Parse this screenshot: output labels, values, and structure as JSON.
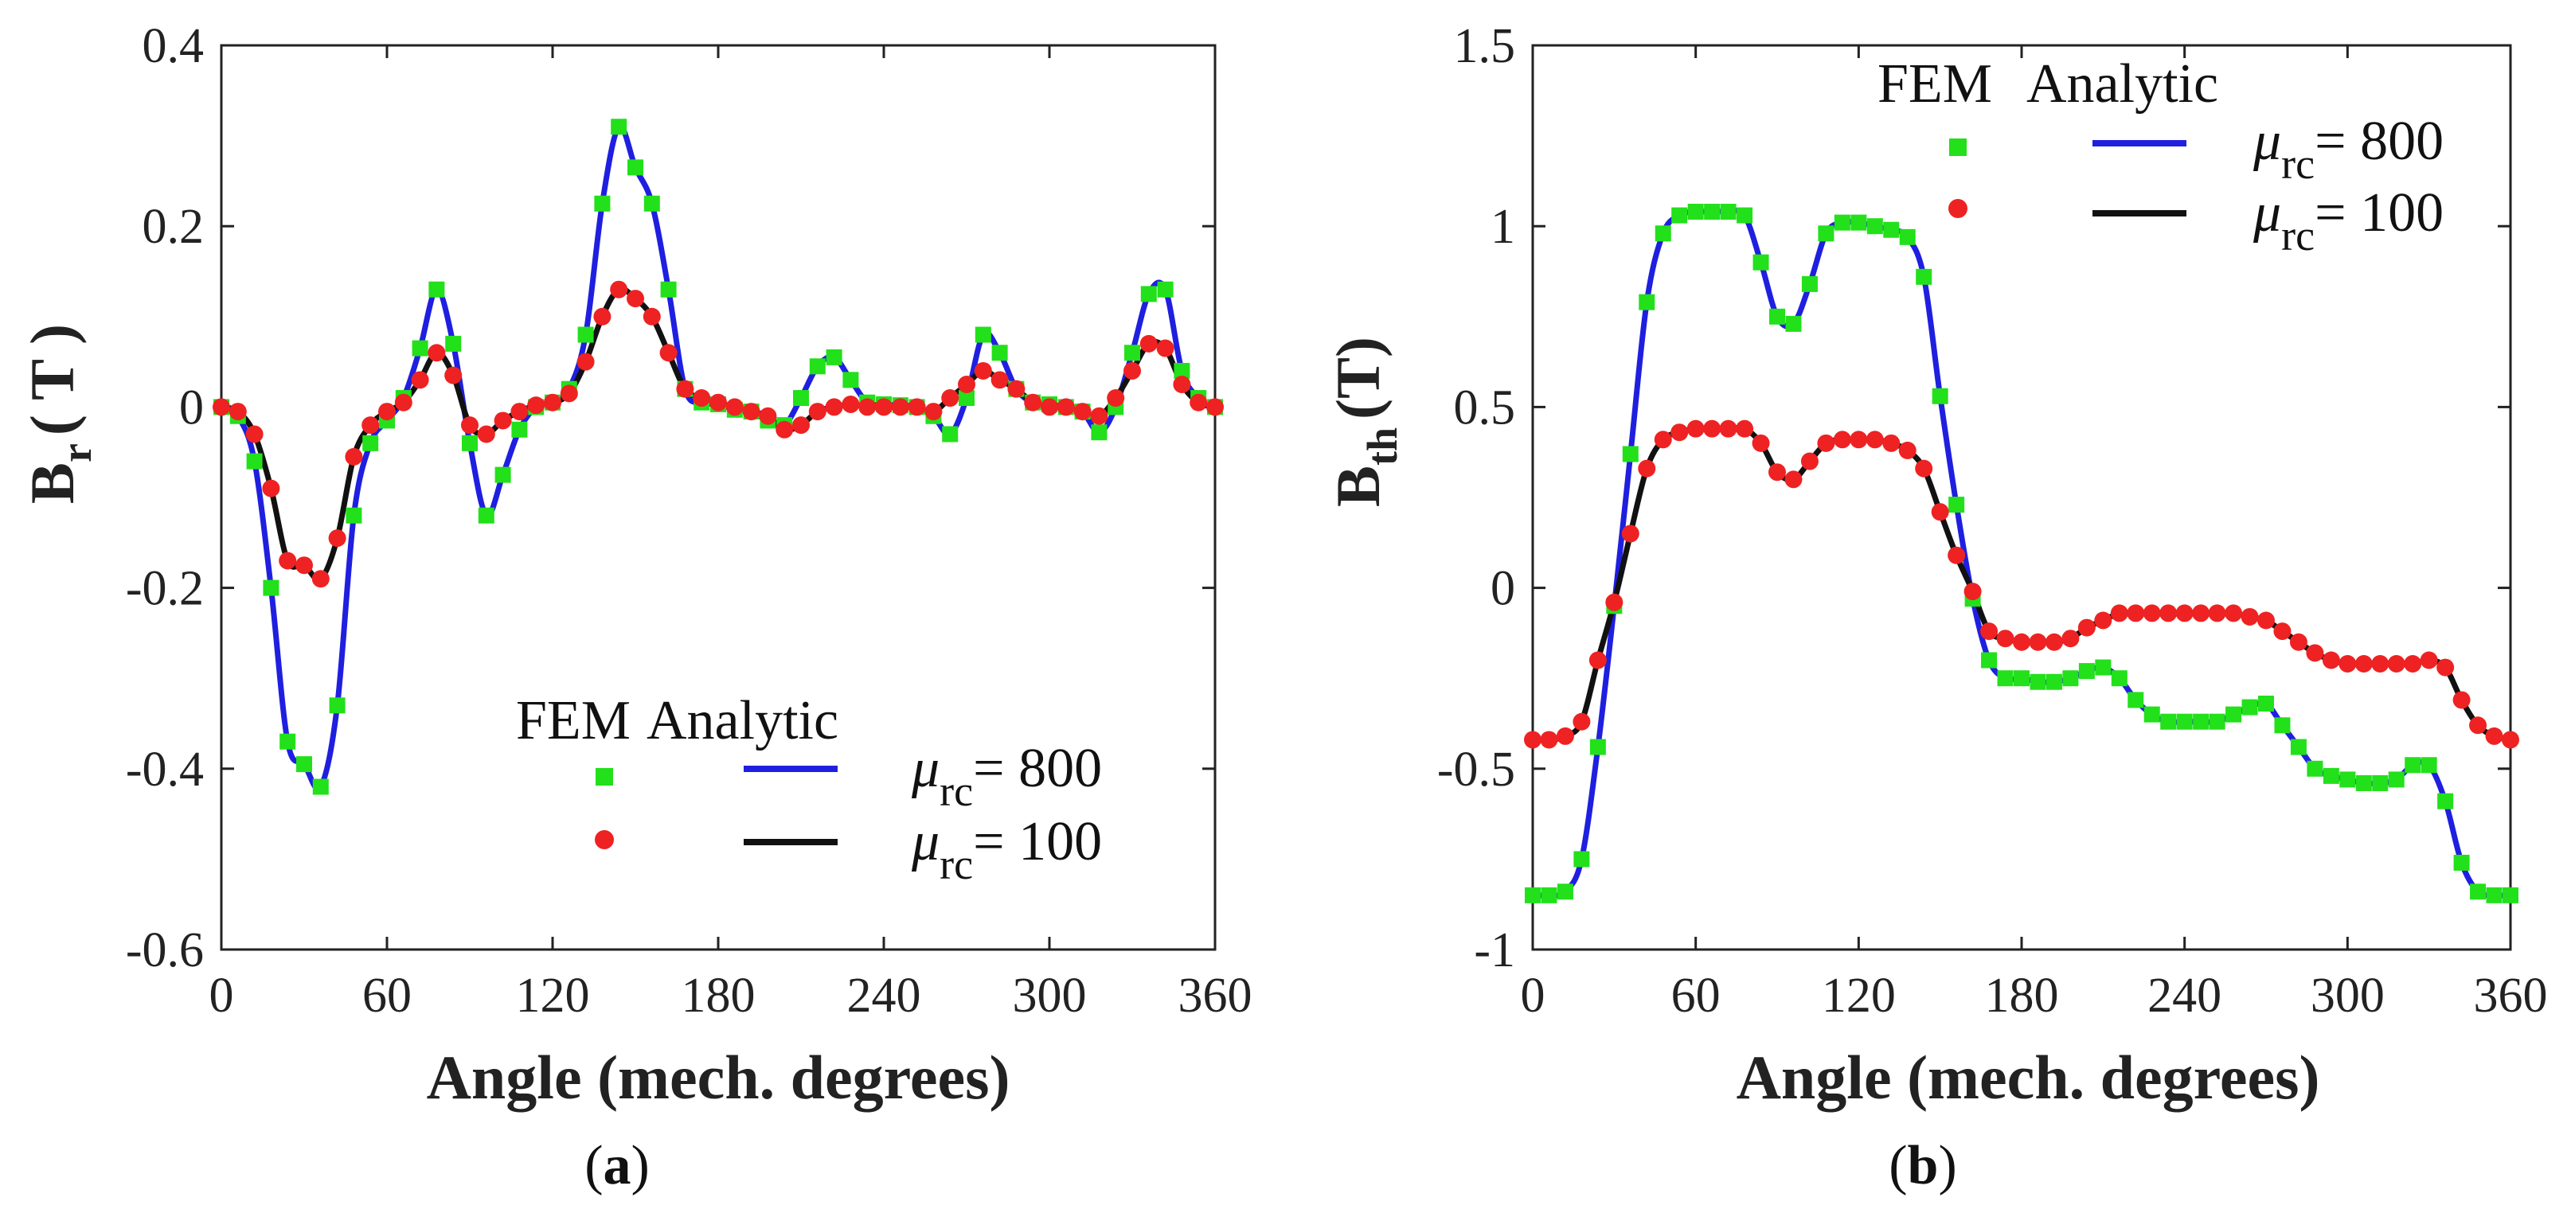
{
  "chart_data": [
    {
      "id": "a",
      "type": "line",
      "caption_letter": "a",
      "ylabel_main": "B",
      "ylabel_sub": "r",
      "ylabel_unit": "( T )",
      "xlabel": "Angle (mech. degrees)",
      "xlim": [
        0,
        360
      ],
      "ylim": [
        -0.6,
        0.4
      ],
      "xticks": [
        0,
        60,
        120,
        180,
        240,
        300,
        360
      ],
      "yticks": [
        -0.6,
        -0.4,
        -0.2,
        0,
        0.2,
        0.4
      ],
      "ytick_labels": [
        "-0.6",
        "-0.4",
        "-0.2",
        "0",
        "0.2",
        "0.4"
      ],
      "legend": {
        "header_fem": "FEM",
        "header_analytic": "Analytic",
        "placement": "lower-right"
      },
      "series": [
        {
          "name": "μrc = 800",
          "mu_label": "μ",
          "mu_sub": "rc",
          "mu_value": "= 800",
          "line_color": "#1f1fe0",
          "marker_color": "#22e01a",
          "marker": "square",
          "x": [
            0,
            6,
            12,
            18,
            24,
            30,
            36,
            42,
            48,
            54,
            60,
            66,
            72,
            78,
            84,
            90,
            96,
            102,
            108,
            114,
            120,
            126,
            132,
            138,
            144,
            150,
            156,
            162,
            168,
            174,
            180,
            186,
            192,
            198,
            204,
            210,
            216,
            222,
            228,
            234,
            240,
            246,
            252,
            258,
            264,
            270,
            276,
            282,
            288,
            294,
            300,
            306,
            312,
            318,
            324,
            330,
            336,
            342,
            348,
            354,
            360
          ],
          "y": [
            0,
            -0.01,
            -0.06,
            -0.2,
            -0.37,
            -0.395,
            -0.42,
            -0.33,
            -0.12,
            -0.04,
            -0.015,
            0.01,
            0.065,
            0.13,
            0.07,
            -0.04,
            -0.12,
            -0.075,
            -0.025,
            0.0,
            0.005,
            0.02,
            0.08,
            0.225,
            0.31,
            0.265,
            0.225,
            0.13,
            0.02,
            0.005,
            0.003,
            -0.003,
            -0.005,
            -0.015,
            -0.02,
            0.01,
            0.045,
            0.055,
            0.03,
            0.005,
            0.003,
            0.002,
            0.0,
            -0.01,
            -0.03,
            0.01,
            0.08,
            0.06,
            0.02,
            0.005,
            0.003,
            0.0,
            -0.005,
            -0.028,
            0.0,
            0.06,
            0.125,
            0.13,
            0.04,
            0.01,
            0.0
          ]
        },
        {
          "name": "μrc = 100",
          "mu_label": "μ",
          "mu_sub": "rc",
          "mu_value": "= 100",
          "line_color": "#111111",
          "marker_color": "#ee2222",
          "marker": "circle",
          "x": [
            0,
            6,
            12,
            18,
            24,
            30,
            36,
            42,
            48,
            54,
            60,
            66,
            72,
            78,
            84,
            90,
            96,
            102,
            108,
            114,
            120,
            126,
            132,
            138,
            144,
            150,
            156,
            162,
            168,
            174,
            180,
            186,
            192,
            198,
            204,
            210,
            216,
            222,
            228,
            234,
            240,
            246,
            252,
            258,
            264,
            270,
            276,
            282,
            288,
            294,
            300,
            306,
            312,
            318,
            324,
            330,
            336,
            342,
            348,
            354,
            360
          ],
          "y": [
            0,
            -0.005,
            -0.03,
            -0.09,
            -0.17,
            -0.175,
            -0.19,
            -0.145,
            -0.055,
            -0.02,
            -0.005,
            0.005,
            0.03,
            0.06,
            0.035,
            -0.02,
            -0.03,
            -0.015,
            -0.005,
            0.002,
            0.005,
            0.015,
            0.05,
            0.1,
            0.13,
            0.12,
            0.1,
            0.06,
            0.02,
            0.01,
            0.005,
            0.0,
            -0.005,
            -0.01,
            -0.025,
            -0.02,
            -0.005,
            0.0,
            0.003,
            0.0,
            0.0,
            0.0,
            0.0,
            -0.005,
            0.01,
            0.025,
            0.04,
            0.03,
            0.02,
            0.005,
            0.0,
            0.0,
            -0.005,
            -0.01,
            0.01,
            0.04,
            0.07,
            0.065,
            0.025,
            0.005,
            0.0
          ]
        }
      ]
    },
    {
      "id": "b",
      "type": "line",
      "caption_letter": "b",
      "ylabel_main": "B",
      "ylabel_sub": "th",
      "ylabel_unit": "(T)",
      "xlabel": "Angle (mech. degrees)",
      "xlim": [
        0,
        360
      ],
      "ylim": [
        -1,
        1.5
      ],
      "xticks": [
        0,
        60,
        120,
        180,
        240,
        300,
        360
      ],
      "yticks": [
        -1,
        -0.5,
        0,
        0.5,
        1,
        1.5
      ],
      "ytick_labels": [
        "-1",
        "-0.5",
        "0",
        "0.5",
        "1",
        "1.5"
      ],
      "legend": {
        "header_fem": "FEM",
        "header_analytic": "Analytic",
        "placement": "top-right"
      },
      "series": [
        {
          "name": "μrc = 800",
          "mu_label": "μ",
          "mu_sub": "rc",
          "mu_value": "= 800",
          "line_color": "#1f1fe0",
          "marker_color": "#22e01a",
          "marker": "square",
          "x": [
            0,
            6,
            12,
            18,
            24,
            30,
            36,
            42,
            48,
            54,
            60,
            66,
            72,
            78,
            84,
            90,
            96,
            102,
            108,
            114,
            120,
            126,
            132,
            138,
            144,
            150,
            156,
            162,
            168,
            174,
            180,
            186,
            192,
            198,
            204,
            210,
            216,
            222,
            228,
            234,
            240,
            246,
            252,
            258,
            264,
            270,
            276,
            282,
            288,
            294,
            300,
            306,
            312,
            318,
            324,
            330,
            336,
            342,
            348,
            354,
            360
          ],
          "y": [
            -0.85,
            -0.85,
            -0.84,
            -0.75,
            -0.44,
            -0.05,
            0.37,
            0.79,
            0.98,
            1.03,
            1.04,
            1.04,
            1.04,
            1.03,
            0.9,
            0.75,
            0.73,
            0.84,
            0.98,
            1.01,
            1.01,
            1.0,
            0.99,
            0.97,
            0.86,
            0.53,
            0.23,
            -0.03,
            -0.2,
            -0.25,
            -0.25,
            -0.26,
            -0.26,
            -0.25,
            -0.23,
            -0.22,
            -0.25,
            -0.31,
            -0.35,
            -0.37,
            -0.37,
            -0.37,
            -0.37,
            -0.35,
            -0.33,
            -0.32,
            -0.38,
            -0.44,
            -0.5,
            -0.52,
            -0.53,
            -0.54,
            -0.54,
            -0.53,
            -0.49,
            -0.49,
            -0.59,
            -0.76,
            -0.84,
            -0.85,
            -0.85
          ]
        },
        {
          "name": "μrc = 100",
          "mu_label": "μ",
          "mu_sub": "rc",
          "mu_value": "= 100",
          "line_color": "#111111",
          "marker_color": "#ee2222",
          "marker": "circle",
          "x": [
            0,
            6,
            12,
            18,
            24,
            30,
            36,
            42,
            48,
            54,
            60,
            66,
            72,
            78,
            84,
            90,
            96,
            102,
            108,
            114,
            120,
            126,
            132,
            138,
            144,
            150,
            156,
            162,
            168,
            174,
            180,
            186,
            192,
            198,
            204,
            210,
            216,
            222,
            228,
            234,
            240,
            246,
            252,
            258,
            264,
            270,
            276,
            282,
            288,
            294,
            300,
            306,
            312,
            318,
            324,
            330,
            336,
            342,
            348,
            354,
            360
          ],
          "y": [
            -0.42,
            -0.42,
            -0.41,
            -0.37,
            -0.2,
            -0.04,
            0.15,
            0.33,
            0.41,
            0.43,
            0.44,
            0.44,
            0.44,
            0.44,
            0.4,
            0.32,
            0.3,
            0.35,
            0.4,
            0.41,
            0.41,
            0.41,
            0.4,
            0.38,
            0.33,
            0.21,
            0.09,
            -0.01,
            -0.12,
            -0.14,
            -0.15,
            -0.15,
            -0.15,
            -0.14,
            -0.11,
            -0.09,
            -0.07,
            -0.07,
            -0.07,
            -0.07,
            -0.07,
            -0.07,
            -0.07,
            -0.07,
            -0.08,
            -0.09,
            -0.12,
            -0.15,
            -0.18,
            -0.2,
            -0.21,
            -0.21,
            -0.21,
            -0.21,
            -0.21,
            -0.2,
            -0.22,
            -0.31,
            -0.38,
            -0.41,
            -0.42
          ]
        }
      ]
    }
  ]
}
